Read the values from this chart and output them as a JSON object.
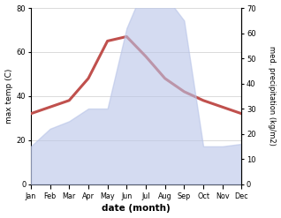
{
  "months": [
    "Jan",
    "Feb",
    "Mar",
    "Apr",
    "May",
    "Jun",
    "Jul",
    "Aug",
    "Sep",
    "Oct",
    "Nov",
    "Dec"
  ],
  "temperature": [
    32,
    35,
    38,
    48,
    65,
    67,
    58,
    48,
    42,
    38,
    35,
    32
  ],
  "precipitation": [
    15,
    22,
    25,
    30,
    30,
    62,
    80,
    75,
    65,
    15,
    15,
    16
  ],
  "temp_color": "#c0504d",
  "precip_fill_color": "#b8c4e8",
  "precip_fill_alpha": 0.6,
  "temp_ylim": [
    0,
    80
  ],
  "precip_ylim": [
    0,
    70
  ],
  "temp_yticks": [
    0,
    20,
    40,
    60,
    80
  ],
  "precip_yticks": [
    0,
    10,
    20,
    30,
    40,
    50,
    60,
    70
  ],
  "xlabel": "date (month)",
  "ylabel_left": "max temp (C)",
  "ylabel_right": "med. precipitation (kg/m2)",
  "linewidth": 2.2,
  "bg_color": "#ffffff",
  "grid_color": "#cccccc"
}
